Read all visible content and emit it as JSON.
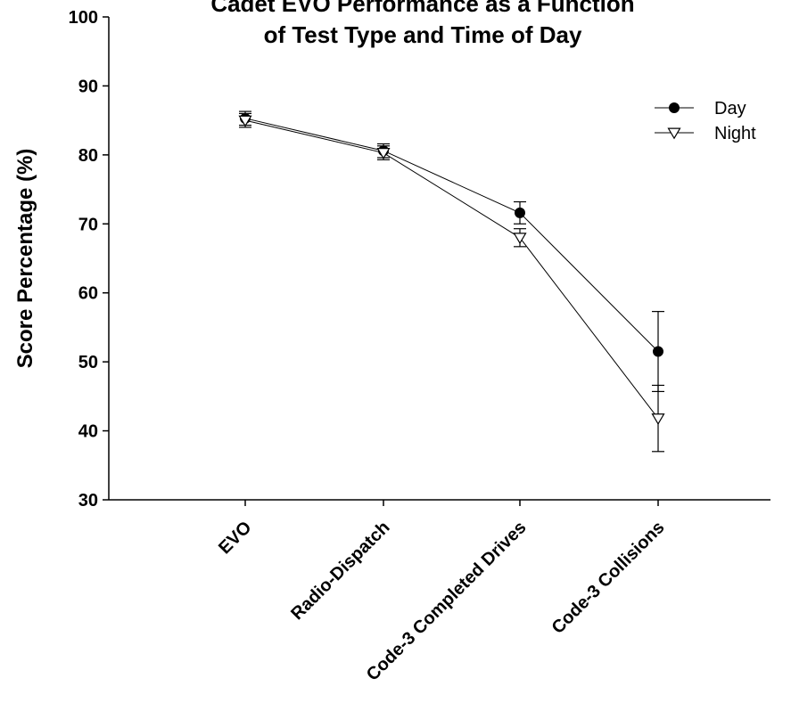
{
  "chart_data": {
    "type": "line",
    "title": [
      "Cadet EVO Performance as a Function",
      "of Test Type and Time of Day"
    ],
    "xlabel": "",
    "ylabel": "Score Percentage (%)",
    "ylim": [
      30,
      100
    ],
    "yticks": [
      "30",
      "40",
      "50",
      "60",
      "70",
      "80",
      "90",
      "100"
    ],
    "categories": [
      "EVO",
      "Radio-Dispatch",
      "Code-3 Completed Drives",
      "Code-3 Collisions"
    ],
    "grid": false,
    "legend_position": "top-right",
    "series": [
      {
        "name": "Day",
        "marker": "filled-circle",
        "color": "#000000",
        "values": [
          85.3,
          80.6,
          71.6,
          51.5
        ],
        "error": [
          1.0,
          1.0,
          1.6,
          5.8
        ]
      },
      {
        "name": "Night",
        "marker": "open-triangle-down",
        "color": "#000000",
        "values": [
          85.0,
          80.3,
          68.0,
          41.8
        ],
        "error": [
          1.0,
          1.0,
          1.3,
          4.8
        ]
      }
    ]
  }
}
